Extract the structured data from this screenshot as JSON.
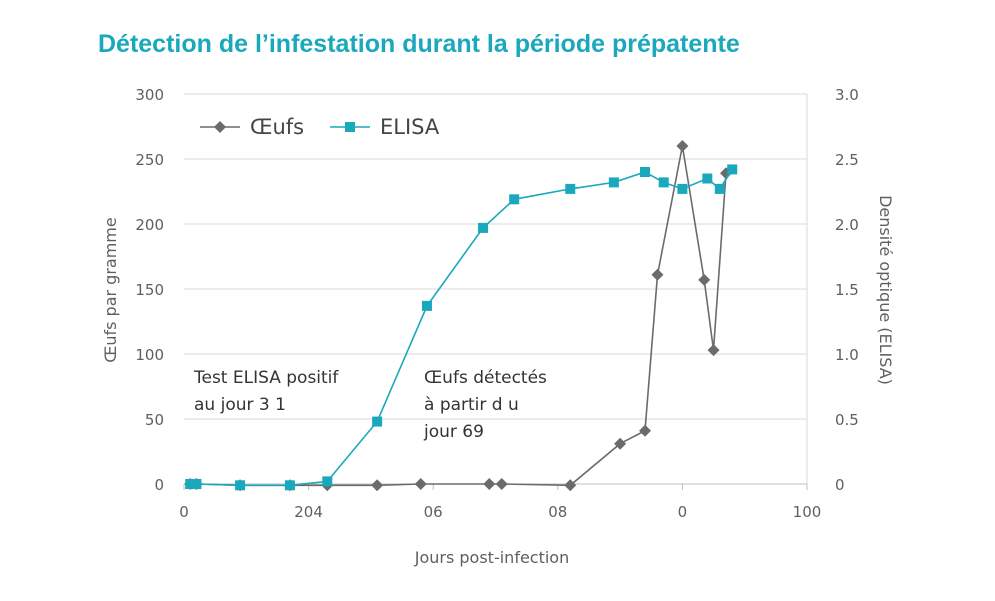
{
  "title": "Détection de l’infestation durant la période prépatente",
  "chart_data": {
    "type": "line",
    "xlabel": "Jours post-infection",
    "ylabel": "Œufs par gramme",
    "ylabel_right": "Densité optique (ELISA)",
    "xlim": [
      0,
      100
    ],
    "ylim": [
      0,
      300
    ],
    "ylim_right": [
      0,
      3.0
    ],
    "x_tick_labels": [
      "0",
      "204",
      "06",
      "08",
      "0",
      "100"
    ],
    "y_tick_labels": [
      "0",
      "50",
      "100",
      "150",
      "200",
      "250",
      "300"
    ],
    "y_right_tick_labels": [
      "0",
      "0.5",
      "1.0",
      "1.5",
      "2.0",
      "2.5",
      "3.0"
    ],
    "grid": true,
    "legend": "top-left",
    "series": [
      {
        "name": "Œufs",
        "axis": "left",
        "color": "#6b6b6b",
        "marker": "diamond",
        "x": [
          1,
          2,
          9,
          17,
          23,
          31,
          38,
          49,
          51,
          62,
          70,
          74,
          76,
          80,
          83.5,
          85,
          87
        ],
        "y": [
          0,
          0,
          -1,
          -1,
          -1,
          -1,
          0,
          0,
          0,
          -1,
          31,
          41,
          161,
          260,
          157,
          103,
          239
        ]
      },
      {
        "name": "ELISA",
        "axis": "right",
        "color": "#1aa8bc",
        "marker": "square",
        "x": [
          1,
          2,
          9,
          17,
          23,
          31,
          39,
          48,
          53,
          62,
          69,
          74,
          77,
          80,
          84,
          86,
          88
        ],
        "y": [
          0.0,
          0.0,
          -0.01,
          -0.01,
          0.02,
          0.48,
          1.37,
          1.97,
          2.19,
          2.27,
          2.32,
          2.4,
          2.32,
          2.27,
          2.35,
          2.27,
          2.42
        ]
      }
    ],
    "annotations": [
      [
        "Test ELISA positif",
        "au jour 3 1"
      ],
      [
        "Œufs détectés",
        "à partir d u",
        "jour 69"
      ]
    ]
  }
}
